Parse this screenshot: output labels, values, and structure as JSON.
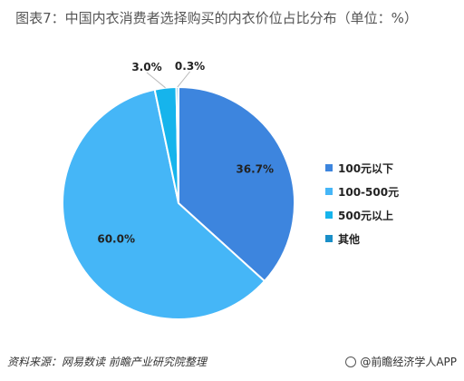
{
  "chart_data": {
    "type": "pie",
    "title": "图表7：中国内衣消费者选择购买的内衣价位占比分布（单位：%）",
    "categories": [
      "100元以下",
      "100-500元",
      "500元以上",
      "其他"
    ],
    "values": [
      36.7,
      60.0,
      3.0,
      0.3
    ],
    "value_labels": [
      "36.7%",
      "60.0%",
      "3.0%",
      "0.3%"
    ],
    "colors": [
      "#3d85de",
      "#45b6f7",
      "#16b4ec",
      "#1a8fc8"
    ],
    "legend_position": "right"
  },
  "footer": {
    "source": "资料来源：网易数读  前瞻产业研究院整理",
    "brand": "@前瞻经济学人APP"
  }
}
